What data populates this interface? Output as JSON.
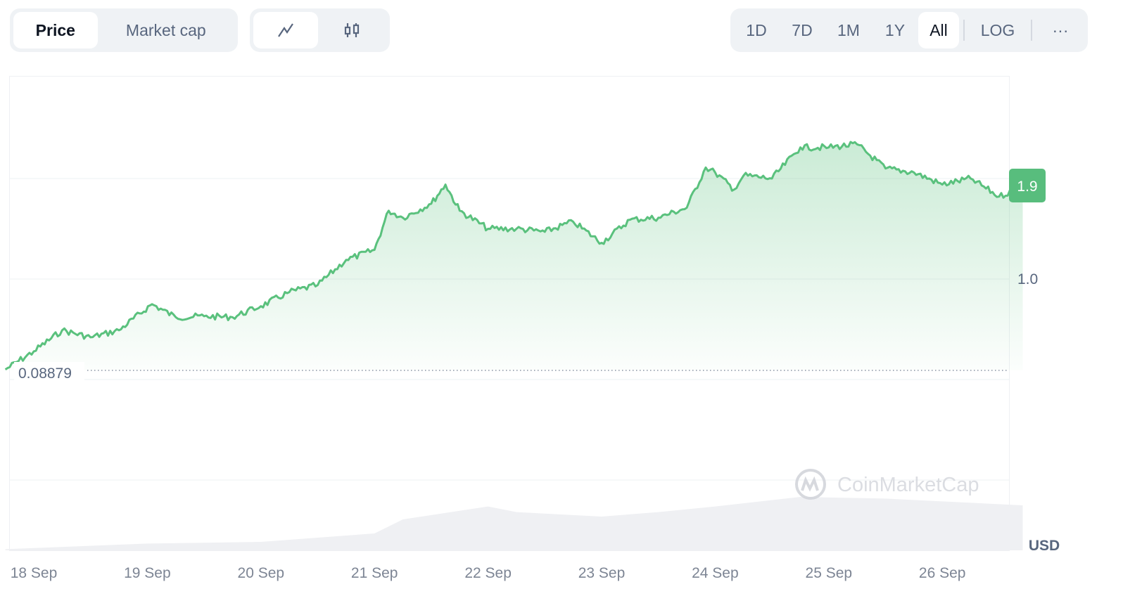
{
  "toolbar": {
    "metric_tabs": [
      {
        "label": "Price",
        "active": true
      },
      {
        "label": "Market cap",
        "active": false
      }
    ],
    "chart_types": [
      {
        "icon": "line-chart-icon",
        "active": true
      },
      {
        "icon": "candlestick-icon",
        "active": false
      }
    ],
    "ranges": [
      {
        "label": "1D"
      },
      {
        "label": "7D"
      },
      {
        "label": "1M"
      },
      {
        "label": "1Y"
      },
      {
        "label": "All",
        "active": true
      }
    ],
    "log_label": "LOG",
    "more_label": "···"
  },
  "colors": {
    "line": "#5ac17d",
    "badge": "#58bd7d",
    "volume": "#eff0f3"
  },
  "chart_data": {
    "type": "area",
    "currency_label": "USD",
    "watermark": "CoinMarketCap",
    "current_price_label": "1.9",
    "baseline_label": "0.08879",
    "baseline_value": 0.08879,
    "y_ticks": [
      {
        "value": 1.0,
        "label": "1.0"
      }
    ],
    "ylim": [
      0,
      2.9
    ],
    "grid": true,
    "x_ticks": [
      "18 Sep",
      "19 Sep",
      "20 Sep",
      "21 Sep",
      "22 Sep",
      "23 Sep",
      "24 Sep",
      "25 Sep",
      "26 Sep"
    ],
    "series": [
      {
        "values": [
          [
            "17 Sep 18:00",
            0.1
          ],
          [
            "18 Sep 00:00",
            0.28
          ],
          [
            "18 Sep 06:00",
            0.49
          ],
          [
            "18 Sep 12:00",
            0.42
          ],
          [
            "18 Sep 18:00",
            0.49
          ],
          [
            "19 Sep 01:00",
            0.75
          ],
          [
            "19 Sep 06:00",
            0.62
          ],
          [
            "19 Sep 12:00",
            0.63
          ],
          [
            "19 Sep 18:00",
            0.62
          ],
          [
            "20 Sep 00:00",
            0.73
          ],
          [
            "20 Sep 06:00",
            0.87
          ],
          [
            "20 Sep 12:00",
            0.94
          ],
          [
            "20 Sep 18:00",
            1.19
          ],
          [
            "21 Sep 00:00",
            1.29
          ],
          [
            "21 Sep 03:00",
            1.68
          ],
          [
            "21 Sep 06:00",
            1.61
          ],
          [
            "21 Sep 12:00",
            1.75
          ],
          [
            "21 Sep 15:00",
            1.94
          ],
          [
            "21 Sep 18:00",
            1.68
          ],
          [
            "22 Sep 00:00",
            1.5
          ],
          [
            "22 Sep 06:00",
            1.5
          ],
          [
            "22 Sep 12:00",
            1.47
          ],
          [
            "22 Sep 18:00",
            1.57
          ],
          [
            "23 Sep 00:00",
            1.36
          ],
          [
            "23 Sep 06:00",
            1.59
          ],
          [
            "23 Sep 12:00",
            1.61
          ],
          [
            "23 Sep 18:00",
            1.71
          ],
          [
            "23 Sep 22:00",
            2.11
          ],
          [
            "24 Sep 00:00",
            2.06
          ],
          [
            "24 Sep 04:00",
            1.89
          ],
          [
            "24 Sep 06:00",
            2.03
          ],
          [
            "24 Sep 12:00",
            2.0
          ],
          [
            "24 Sep 18:00",
            2.31
          ],
          [
            "25 Sep 00:00",
            2.31
          ],
          [
            "25 Sep 06:00",
            2.34
          ],
          [
            "25 Sep 12:00",
            2.1
          ],
          [
            "25 Sep 18:00",
            2.06
          ],
          [
            "26 Sep 00:00",
            1.94
          ],
          [
            "26 Sep 06:00",
            2.0
          ],
          [
            "26 Sep 12:00",
            1.82
          ],
          [
            "26 Sep 17:00",
            1.92
          ]
        ]
      }
    ],
    "volume_relative": [
      [
        "17 Sep 18:00",
        0.02
      ],
      [
        "19 Sep 00:00",
        0.12
      ],
      [
        "20 Sep 00:00",
        0.15
      ],
      [
        "21 Sep 00:00",
        0.3
      ],
      [
        "21 Sep 06:00",
        0.55
      ],
      [
        "22 Sep 00:00",
        0.78
      ],
      [
        "22 Sep 06:00",
        0.68
      ],
      [
        "23 Sep 00:00",
        0.6
      ],
      [
        "23 Sep 12:00",
        0.68
      ],
      [
        "24 Sep 00:00",
        0.78
      ],
      [
        "24 Sep 18:00",
        0.95
      ],
      [
        "25 Sep 12:00",
        0.92
      ],
      [
        "26 Sep 17:00",
        0.8
      ]
    ]
  }
}
